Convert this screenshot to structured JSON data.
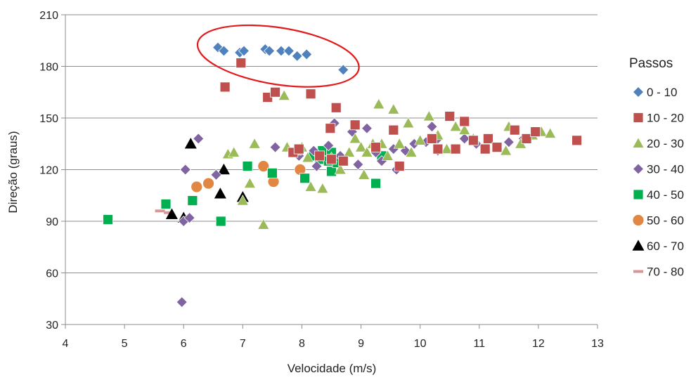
{
  "chart_data": {
    "type": "scatter",
    "title": "",
    "xlabel": "Velocidade (m/s)",
    "ylabel": "Direção (graus)",
    "xlim": [
      4,
      13
    ],
    "ylim": [
      30,
      210
    ],
    "xticks": [
      4,
      5,
      6,
      7,
      8,
      9,
      10,
      11,
      12,
      13
    ],
    "yticks": [
      30,
      60,
      90,
      120,
      150,
      180,
      210
    ],
    "grid": "horizontal",
    "legend": {
      "title": "Passos",
      "placement": "right"
    },
    "annotation": {
      "shape": "ellipse",
      "color": "#e31a1c",
      "cx": 7.6,
      "cy": 186,
      "rx": 1.38,
      "ry": 16.5
    },
    "series": [
      {
        "name": "0 - 10",
        "marker": "diamond",
        "color": "#4f81bd",
        "points": [
          [
            6.58,
            191
          ],
          [
            6.68,
            189
          ],
          [
            6.95,
            188
          ],
          [
            7.02,
            189
          ],
          [
            7.38,
            190
          ],
          [
            7.45,
            189
          ],
          [
            7.65,
            189
          ],
          [
            7.78,
            189
          ],
          [
            7.92,
            186
          ],
          [
            8.08,
            187
          ],
          [
            8.7,
            178
          ]
        ]
      },
      {
        "name": "10 - 20",
        "marker": "square",
        "color": "#c0504d",
        "points": [
          [
            6.7,
            168
          ],
          [
            6.97,
            182
          ],
          [
            7.42,
            162
          ],
          [
            7.55,
            165
          ],
          [
            8.15,
            164
          ],
          [
            8.58,
            156
          ],
          [
            8.48,
            144
          ],
          [
            8.9,
            146
          ],
          [
            7.85,
            130
          ],
          [
            7.95,
            132
          ],
          [
            8.3,
            128
          ],
          [
            8.5,
            126
          ],
          [
            8.7,
            125
          ],
          [
            9.25,
            133
          ],
          [
            9.55,
            143
          ],
          [
            9.65,
            122
          ],
          [
            10.2,
            138
          ],
          [
            10.3,
            132
          ],
          [
            10.5,
            151
          ],
          [
            10.6,
            132
          ],
          [
            10.75,
            148
          ],
          [
            10.9,
            137
          ],
          [
            11.1,
            132
          ],
          [
            11.15,
            138
          ],
          [
            11.3,
            133
          ],
          [
            11.6,
            143
          ],
          [
            11.8,
            138
          ],
          [
            11.95,
            142
          ],
          [
            12.65,
            137
          ]
        ]
      },
      {
        "name": "20 - 30",
        "marker": "triangle",
        "color": "#9bbb59",
        "points": [
          [
            6.75,
            129
          ],
          [
            6.85,
            130
          ],
          [
            7.0,
            102
          ],
          [
            7.12,
            112
          ],
          [
            7.2,
            135
          ],
          [
            7.35,
            88
          ],
          [
            7.5,
            165
          ],
          [
            7.7,
            163
          ],
          [
            7.75,
            133
          ],
          [
            7.9,
            131
          ],
          [
            8.0,
            133
          ],
          [
            8.1,
            127
          ],
          [
            8.15,
            110
          ],
          [
            8.35,
            109
          ],
          [
            8.5,
            127
          ],
          [
            8.65,
            120
          ],
          [
            8.8,
            130
          ],
          [
            8.9,
            138
          ],
          [
            9.0,
            133
          ],
          [
            9.05,
            117
          ],
          [
            9.1,
            130
          ],
          [
            9.2,
            135
          ],
          [
            9.3,
            158
          ],
          [
            9.35,
            135
          ],
          [
            9.45,
            128
          ],
          [
            9.55,
            155
          ],
          [
            9.65,
            135
          ],
          [
            9.8,
            147
          ],
          [
            9.85,
            130
          ],
          [
            10.0,
            137
          ],
          [
            10.15,
            151
          ],
          [
            10.3,
            140
          ],
          [
            10.45,
            132
          ],
          [
            10.6,
            145
          ],
          [
            10.75,
            143
          ],
          [
            10.9,
            138
          ],
          [
            11.45,
            131
          ],
          [
            11.5,
            145
          ],
          [
            11.7,
            135
          ],
          [
            11.9,
            140
          ],
          [
            12.05,
            142
          ],
          [
            12.2,
            141
          ]
        ]
      },
      {
        "name": "30 - 40",
        "marker": "diamond",
        "color": "#8064a2",
        "points": [
          [
            5.97,
            43
          ],
          [
            6.0,
            90
          ],
          [
            6.03,
            120
          ],
          [
            6.1,
            92
          ],
          [
            6.25,
            138
          ],
          [
            6.55,
            117
          ],
          [
            7.55,
            133
          ],
          [
            7.95,
            128
          ],
          [
            8.2,
            131
          ],
          [
            8.25,
            122
          ],
          [
            8.45,
            134
          ],
          [
            8.55,
            147
          ],
          [
            8.65,
            128
          ],
          [
            8.85,
            142
          ],
          [
            8.95,
            123
          ],
          [
            9.1,
            144
          ],
          [
            9.25,
            130
          ],
          [
            9.35,
            125
          ],
          [
            9.55,
            132
          ],
          [
            9.6,
            120
          ],
          [
            9.75,
            131
          ],
          [
            9.9,
            135
          ],
          [
            10.1,
            136
          ],
          [
            10.2,
            145
          ],
          [
            10.3,
            138
          ],
          [
            10.3,
            131
          ],
          [
            10.75,
            138
          ],
          [
            10.95,
            135
          ],
          [
            11.5,
            136
          ],
          [
            11.75,
            138
          ]
        ]
      },
      {
        "name": "40 - 50",
        "marker": "square",
        "color": "#00b050",
        "points": [
          [
            4.72,
            91
          ],
          [
            5.7,
            100
          ],
          [
            6.15,
            102
          ],
          [
            6.63,
            90
          ],
          [
            7.08,
            122
          ],
          [
            7.5,
            118
          ],
          [
            8.05,
            115
          ],
          [
            8.2,
            128
          ],
          [
            8.3,
            126
          ],
          [
            8.35,
            131
          ],
          [
            8.45,
            125
          ],
          [
            8.5,
            130
          ],
          [
            8.5,
            119
          ],
          [
            8.6,
            124
          ],
          [
            9.25,
            112
          ],
          [
            9.35,
            128
          ]
        ]
      },
      {
        "name": "50 - 60",
        "marker": "circle",
        "color": "#e28743",
        "points": [
          [
            6.22,
            110
          ],
          [
            6.42,
            112
          ],
          [
            7.35,
            122
          ],
          [
            7.52,
            113
          ],
          [
            7.97,
            120
          ]
        ]
      },
      {
        "name": "60 - 70",
        "marker": "triangle",
        "color": "#000000",
        "points": [
          [
            5.8,
            94
          ],
          [
            6.0,
            92
          ],
          [
            6.12,
            135
          ],
          [
            6.62,
            106
          ],
          [
            6.68,
            120
          ],
          [
            7.0,
            104
          ]
        ]
      },
      {
        "name": "70 - 80",
        "marker": "dash",
        "color": "#d99694",
        "points": [
          [
            5.6,
            96
          ],
          [
            5.75,
            95
          ]
        ]
      }
    ]
  }
}
